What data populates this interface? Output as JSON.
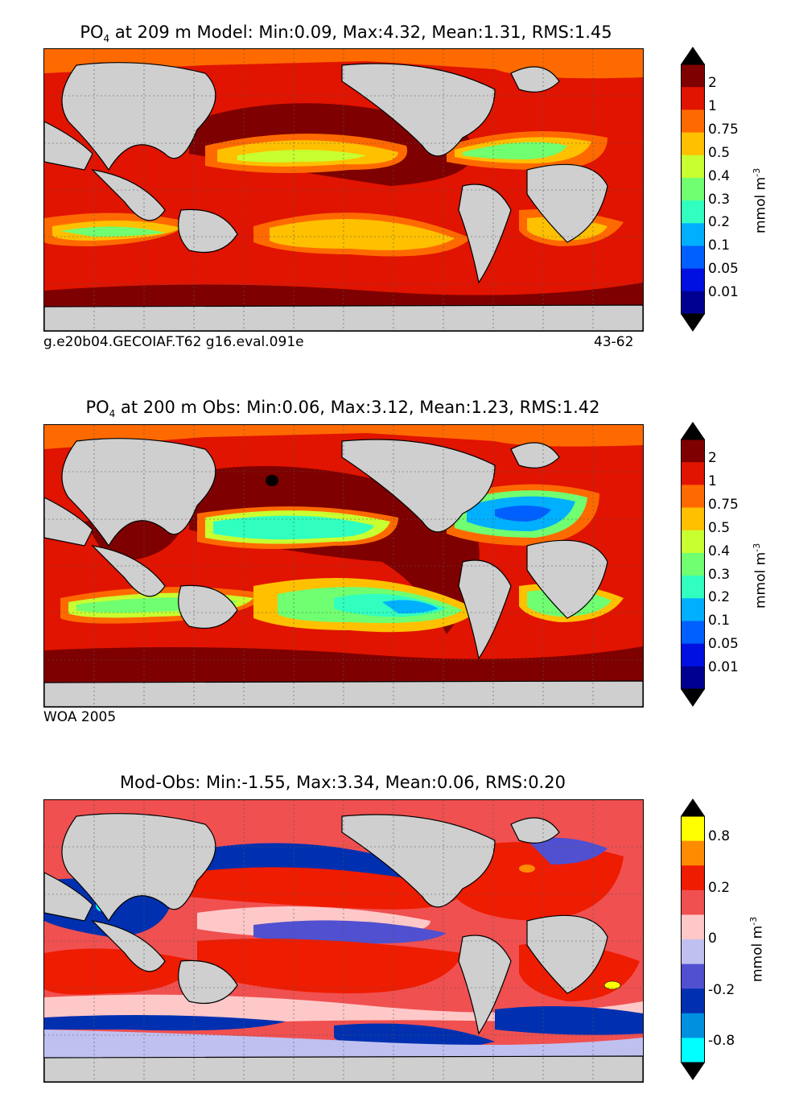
{
  "panels": [
    {
      "title_prefix": "PO",
      "title_sub": "4",
      "title_rest": " at 209 m Model: Min:0.09, Max:4.32, Mean:1.31, RMS:1.45",
      "caption_left": "g.e20b04.GECOIAF.T62 g16.eval.091e",
      "caption_right": "43-62"
    },
    {
      "title_prefix": "PO",
      "title_sub": "4",
      "title_rest": " at 200 m Obs: Min:0.06, Max:3.12, Mean:1.23, RMS:1.42",
      "caption_left": "WOA 2005",
      "caption_right": ""
    },
    {
      "title_prefix": "",
      "title_sub": "",
      "title_rest": "Mod-Obs: Min:-1.55, Max:3.34, Mean:0.06, RMS:0.20",
      "caption_left": "",
      "caption_right": ""
    }
  ],
  "colorbar_abs": {
    "label": "mmol m",
    "label_sup": "-3",
    "ticks": [
      "2",
      "1",
      "0.75",
      "0.5",
      "0.4",
      "0.3",
      "0.2",
      "0.1",
      "0.05",
      "0.01"
    ],
    "colors": [
      "#7f0000",
      "#e01400",
      "#ff6a00",
      "#ffc000",
      "#c8ff30",
      "#70ff70",
      "#30ffc0",
      "#00b0ff",
      "#0060ff",
      "#0010e0",
      "#000090"
    ]
  },
  "colorbar_diff": {
    "label": "mmol m",
    "label_sup": "-3",
    "ticks": [
      "0.8",
      "0.2",
      "0",
      "-0.2",
      "-0.8"
    ],
    "colors": [
      "#ffff00",
      "#ff8c00",
      "#ee1c00",
      "#f05050",
      "#ffc8c8",
      "#c0c0f0",
      "#5050d0",
      "#0030b0",
      "#0090e0",
      "#00ffff"
    ]
  }
}
